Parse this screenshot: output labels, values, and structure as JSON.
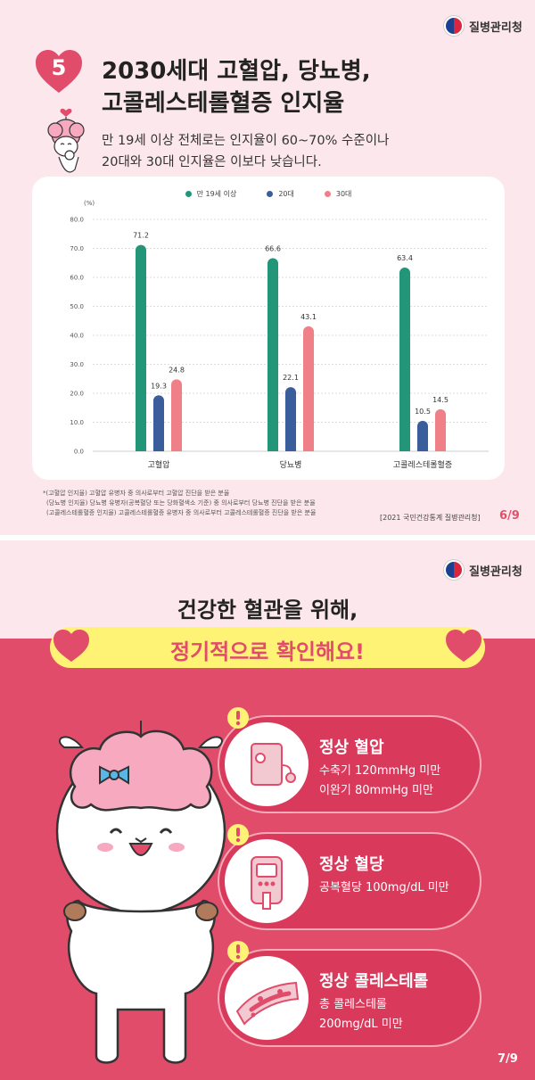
{
  "brand": {
    "name": "질병관리청"
  },
  "slide1": {
    "number": "5",
    "title_line1": "2030세대 고혈압, 당뇨병,",
    "title_line2": "고콜레스테롤혈증 인지율",
    "subtitle_line1": "만 19세 이상 전체로는 인지율이 60~70% 수준이나",
    "subtitle_line2": "20대와 30대 인지율은 이보다 낮습니다.",
    "notes": [
      "*(고혈압 인지율) 고혈압 유병자 중 의사로부터 고혈압 진단을 받은 분율",
      "(당뇨병 인지율) 당뇨병 유병자(공복혈당 또는 당화혈색소 기준) 중 의사로부터 당뇨병 진단을 받은 분율",
      "(고콜레스테롤혈증 인지율) 고콜레스테롤혈증 유병자 중 의사로부터 고콜레스테롤혈증 진단을 받은 분율"
    ],
    "source": "[2021 국민건강통계 질병관리청]",
    "page": "6/9"
  },
  "chart_data": {
    "type": "bar",
    "title": "",
    "xlabel": "",
    "ylabel": "(%)",
    "ylim": [
      0,
      80
    ],
    "yticks": [
      "0.0",
      "10.0",
      "20.0",
      "30.0",
      "40.0",
      "50.0",
      "60.0",
      "70.0",
      "80.0"
    ],
    "categories": [
      "고혈압",
      "당뇨병",
      "고콜레스테롤혈증"
    ],
    "series": [
      {
        "name": "만 19세 이상",
        "color": "#23967a",
        "values": [
          71.2,
          66.6,
          63.4
        ]
      },
      {
        "name": "20대",
        "color": "#3a5d9c",
        "values": [
          19.3,
          22.1,
          10.5
        ]
      },
      {
        "name": "30대",
        "color": "#ef8088",
        "values": [
          24.8,
          43.1,
          14.5
        ]
      }
    ],
    "data_labels": true,
    "grid": true,
    "legend_position": "top-center"
  },
  "slide2": {
    "title_line1": "건강한 혈관을 위해,",
    "title_line2": "정기적으로 확인해요!",
    "cards": [
      {
        "heading": "정상 혈압",
        "line1": "수축기 120mmHg 미만",
        "line2": "이완기 80mmHg 미만",
        "icon": "blood-pressure-monitor-icon"
      },
      {
        "heading": "정상 혈당",
        "line1": "공복혈당 100mg/dL 미만",
        "line2": "",
        "icon": "glucose-meter-icon"
      },
      {
        "heading": "정상 콜레스테롤",
        "line1": "총 콜레스테롤",
        "line2": "200mg/dL 미만",
        "icon": "blood-vessel-icon"
      }
    ],
    "page": "7/9",
    "colors": {
      "accent": "#e14c6a",
      "highlight": "#fff375",
      "card": "#d93a5c"
    }
  }
}
